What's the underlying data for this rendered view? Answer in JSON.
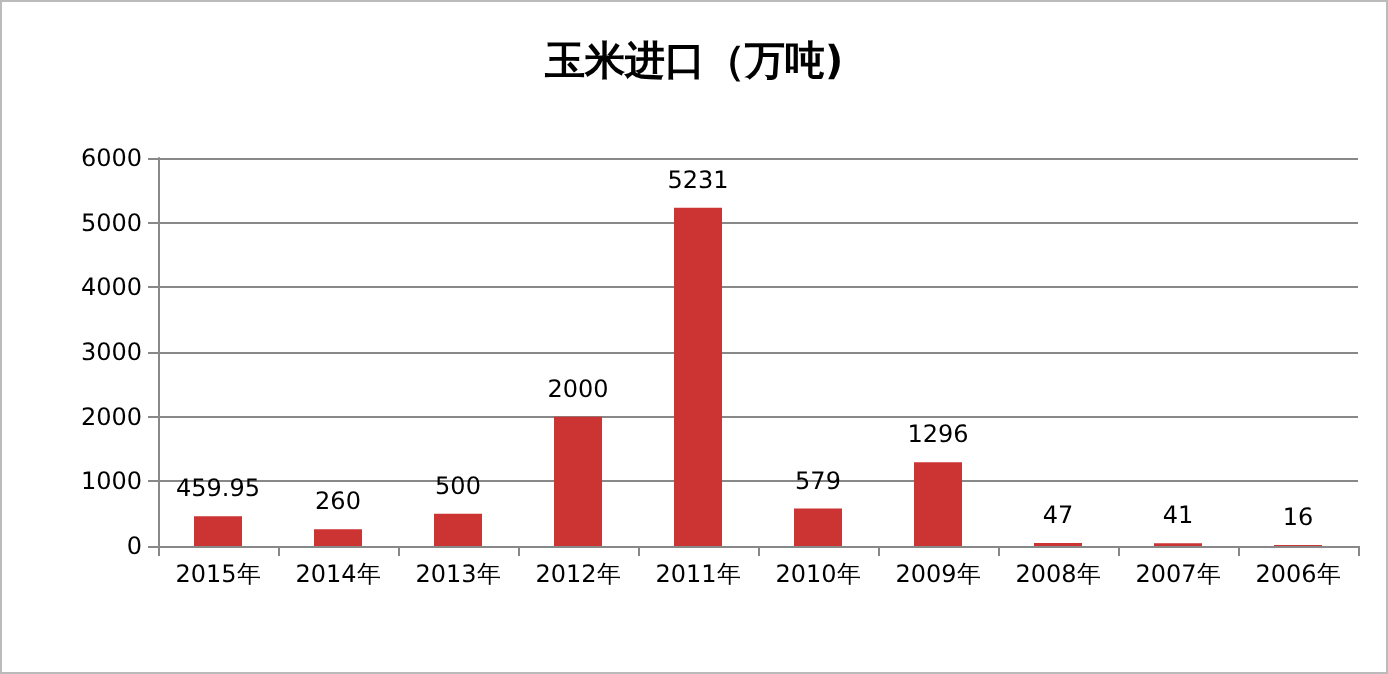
{
  "chart_data": {
    "type": "bar",
    "title": "玉米进口（万吨)",
    "categories": [
      "2015年",
      "2014年",
      "2013年",
      "2012年",
      "2011年",
      "2010年",
      "2009年",
      "2008年",
      "2007年",
      "2006年"
    ],
    "values": [
      459.95,
      260,
      500,
      2000,
      5231,
      579,
      1296,
      47,
      41,
      16
    ],
    "color": "#cc3333",
    "ylim": [
      0,
      6000
    ],
    "yticks": [
      0,
      1000,
      2000,
      3000,
      4000,
      5000,
      6000
    ],
    "grid": "y",
    "data_labels": true
  }
}
